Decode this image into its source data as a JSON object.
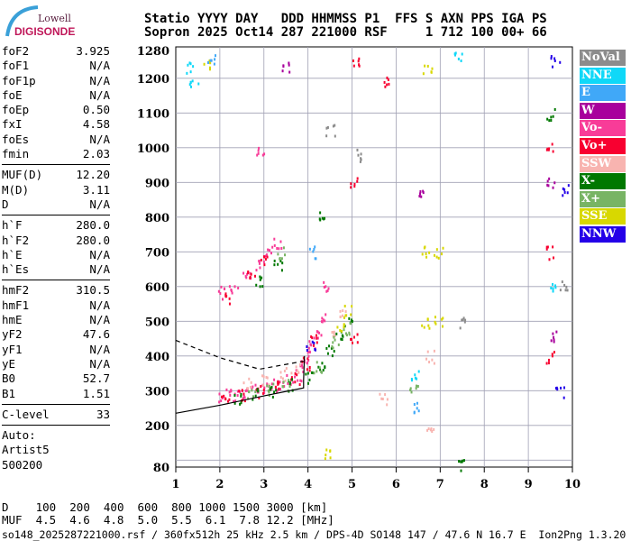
{
  "logo": {
    "line1": "Lowell",
    "line2": "DIGISONDE"
  },
  "header": {
    "line1": "Statio YYYY DAY   DDD HHMMSS P1  FFS S AXN PPS IGA PS",
    "line2": "Sopron 2025 Oct14 287 221000 RSF     1 712 100 00+ 66"
  },
  "params": [
    [
      {
        "k": "foF2",
        "v": "3.925"
      },
      {
        "k": "foF1",
        "v": "N/A"
      },
      {
        "k": "foF1p",
        "v": "N/A"
      },
      {
        "k": "foE",
        "v": "N/A"
      },
      {
        "k": "foEp",
        "v": "0.50"
      },
      {
        "k": "fxI",
        "v": "4.58"
      },
      {
        "k": "foEs",
        "v": "N/A"
      },
      {
        "k": "fmin",
        "v": "2.03"
      }
    ],
    [
      {
        "k": "MUF(D)",
        "v": "12.20"
      },
      {
        "k": "M(D)",
        "v": "3.11"
      },
      {
        "k": "D",
        "v": "N/A"
      }
    ],
    [
      {
        "k": "h`F",
        "v": "280.0"
      },
      {
        "k": "h`F2",
        "v": "280.0"
      },
      {
        "k": "h`E",
        "v": "N/A"
      },
      {
        "k": "h`Es",
        "v": "N/A"
      }
    ],
    [
      {
        "k": "hmF2",
        "v": "310.5"
      },
      {
        "k": "hmF1",
        "v": "N/A"
      },
      {
        "k": "hmE",
        "v": "N/A"
      },
      {
        "k": "yF2",
        "v": "47.6"
      },
      {
        "k": "yF1",
        "v": "N/A"
      },
      {
        "k": "yE",
        "v": "N/A"
      },
      {
        "k": "B0",
        "v": "52.7"
      },
      {
        "k": "B1",
        "v": "1.51"
      }
    ],
    [
      {
        "k": "C-level",
        "v": "33"
      }
    ],
    [
      {
        "k": "Auto:",
        "v": ""
      },
      {
        "k": "Artist5",
        "v": ""
      },
      {
        "k": "500200",
        "v": ""
      }
    ]
  ],
  "legend": [
    {
      "label": "NoVal",
      "color": "#8c8c8c"
    },
    {
      "label": "NNE",
      "color": "#10d8f8"
    },
    {
      "label": "E",
      "color": "#40a8f8"
    },
    {
      "label": "W",
      "color": "#a8009c"
    },
    {
      "label": "Vo-",
      "color": "#f83c98"
    },
    {
      "label": "Vo+",
      "color": "#f80030"
    },
    {
      "label": "SSW",
      "color": "#f8b4b0"
    },
    {
      "label": "X-",
      "color": "#007800"
    },
    {
      "label": "X+",
      "color": "#78b464"
    },
    {
      "label": "SSE",
      "color": "#d8d800"
    },
    {
      "label": "NNW",
      "color": "#2400e8"
    }
  ],
  "muf_table": {
    "d_label": "D",
    "d_values": "    100  200  400  600  800 1000 1500 3000 [km]",
    "muf_label": "MUF",
    "muf_values": "  4.5  4.6  4.8  5.0  5.5  6.1  7.8 12.2 [MHz]"
  },
  "footer": "so148_2025287221000.rsf / 360fx512h 25 kHz 2.5 km / DPS-4D SO148 147 / 47.6 N 16.7 E  Ion2Png 1.3.20",
  "chart_data": {
    "type": "scatter",
    "xlim": [
      1,
      10
    ],
    "ylim": [
      80,
      1280
    ],
    "xticks": [
      1,
      2,
      3,
      4,
      5,
      6,
      7,
      8,
      9,
      10
    ],
    "yticks": [
      80,
      200,
      300,
      400,
      500,
      600,
      700,
      800,
      900,
      1000,
      1100,
      1200,
      1280
    ],
    "grid": true,
    "series": [
      {
        "name": "Vo-",
        "color": "#f83c98",
        "points": [
          [
            2.05,
            285
          ],
          [
            2.2,
            290
          ],
          [
            2.4,
            292
          ],
          [
            2.6,
            298
          ],
          [
            2.8,
            305
          ],
          [
            3.0,
            310
          ],
          [
            3.2,
            318
          ],
          [
            3.4,
            325
          ],
          [
            3.6,
            335
          ],
          [
            3.8,
            345
          ],
          [
            3.9,
            370
          ],
          [
            4.0,
            400
          ],
          [
            4.1,
            430
          ],
          [
            4.2,
            470
          ],
          [
            4.3,
            520
          ],
          [
            4.35,
            600
          ],
          [
            2.05,
            585
          ],
          [
            2.3,
            600
          ],
          [
            2.6,
            630
          ],
          [
            2.9,
            660
          ],
          [
            3.1,
            700
          ],
          [
            3.3,
            730
          ],
          [
            2.9,
            990
          ]
        ]
      },
      {
        "name": "Vo+",
        "color": "#f80030",
        "points": [
          [
            2.1,
            282
          ],
          [
            2.5,
            290
          ],
          [
            2.9,
            300
          ],
          [
            3.3,
            315
          ],
          [
            3.7,
            335
          ],
          [
            3.95,
            380
          ],
          [
            4.15,
            450
          ],
          [
            2.2,
            570
          ],
          [
            2.7,
            640
          ],
          [
            3.0,
            680
          ],
          [
            5.05,
            450
          ],
          [
            5.05,
            900
          ],
          [
            5.05,
            1250
          ],
          [
            5.8,
            1190
          ],
          [
            9.5,
            400
          ],
          [
            9.5,
            700
          ],
          [
            9.5,
            1000
          ]
        ]
      },
      {
        "name": "SSW",
        "color": "#f8b4b0",
        "points": [
          [
            2.6,
            320
          ],
          [
            3.0,
            335
          ],
          [
            3.4,
            350
          ],
          [
            3.7,
            365
          ],
          [
            4.6,
            460
          ],
          [
            4.8,
            520
          ],
          [
            5.7,
            280
          ],
          [
            6.75,
            200
          ],
          [
            6.75,
            400
          ]
        ]
      },
      {
        "name": "X-",
        "color": "#007800",
        "points": [
          [
            2.4,
            280
          ],
          [
            2.8,
            290
          ],
          [
            3.2,
            300
          ],
          [
            3.6,
            318
          ],
          [
            4.0,
            340
          ],
          [
            4.3,
            380
          ],
          [
            4.5,
            420
          ],
          [
            4.7,
            460
          ],
          [
            4.9,
            500
          ],
          [
            2.9,
            620
          ],
          [
            3.3,
            660
          ],
          [
            4.3,
            800
          ],
          [
            7.5,
            90
          ],
          [
            9.5,
            1100
          ]
        ]
      },
      {
        "name": "X+",
        "color": "#78b464",
        "points": [
          [
            2.7,
            295
          ],
          [
            3.1,
            305
          ],
          [
            3.5,
            320
          ],
          [
            4.2,
            370
          ],
          [
            4.6,
            440
          ],
          [
            4.85,
            480
          ],
          [
            3.4,
            700
          ],
          [
            6.4,
            300
          ]
        ]
      },
      {
        "name": "SSE",
        "color": "#d8d800",
        "points": [
          [
            4.7,
            490
          ],
          [
            4.9,
            530
          ],
          [
            6.65,
            500
          ],
          [
            6.65,
            700
          ],
          [
            6.95,
            500
          ],
          [
            6.95,
            700
          ],
          [
            6.7,
            1230
          ],
          [
            1.7,
            1240
          ],
          [
            4.4,
            120
          ]
        ]
      },
      {
        "name": "NNE",
        "color": "#10d8f8",
        "points": [
          [
            1.3,
            1230
          ],
          [
            1.4,
            1180
          ],
          [
            6.4,
            350
          ],
          [
            9.5,
            600
          ],
          [
            7.4,
            1260
          ]
        ]
      },
      {
        "name": "E",
        "color": "#40a8f8",
        "points": [
          [
            4.1,
            700
          ],
          [
            6.4,
            250
          ],
          [
            1.8,
            1260
          ]
        ]
      },
      {
        "name": "W",
        "color": "#a8009c",
        "points": [
          [
            3.5,
            1230
          ],
          [
            6.5,
            880
          ],
          [
            9.5,
            900
          ],
          [
            9.6,
            460
          ]
        ]
      },
      {
        "name": "NNW",
        "color": "#2400e8",
        "points": [
          [
            9.6,
            1250
          ],
          [
            9.85,
            880
          ],
          [
            9.7,
            300
          ],
          [
            4.05,
            430
          ]
        ]
      },
      {
        "name": "NoVal",
        "color": "#8c8c8c",
        "points": [
          [
            4.5,
            1050
          ],
          [
            7.5,
            500
          ],
          [
            9.8,
            600
          ],
          [
            5.2,
            980
          ]
        ]
      }
    ],
    "profile_solid": [
      [
        1.0,
        235
      ],
      [
        2.0,
        258
      ],
      [
        3.0,
        285
      ],
      [
        3.9,
        308
      ],
      [
        3.9,
        330
      ],
      [
        3.92,
        400
      ]
    ],
    "profile_dashed": [
      [
        1.0,
        445
      ],
      [
        2.0,
        395
      ],
      [
        2.9,
        362
      ],
      [
        3.9,
        385
      ]
    ]
  }
}
